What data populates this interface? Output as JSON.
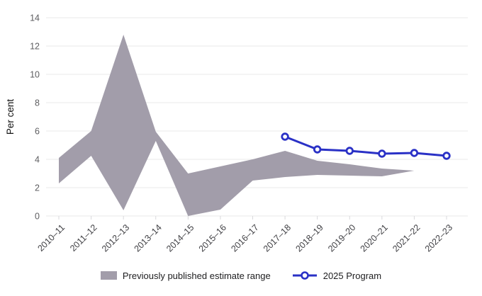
{
  "chart_data": {
    "type": "area",
    "title": "",
    "xlabel": "",
    "ylabel": "Per cent",
    "ylim": [
      0,
      14
    ],
    "ytick_step": 2,
    "grid": true,
    "legend_position": "bottom",
    "categories": [
      "2010–11",
      "2011–12",
      "2012–13",
      "2013–14",
      "2014–15",
      "2015–16",
      "2016–17",
      "2017–18",
      "2018–19",
      "2019–20",
      "2020–21",
      "2021–22",
      "2022–23"
    ],
    "series": [
      {
        "name": "Previously published estimate range",
        "type": "band",
        "color": "#a29daa",
        "lower": [
          2.3,
          4.25,
          0.4,
          5.3,
          0.0,
          0.45,
          2.5,
          2.75,
          2.9,
          2.85,
          2.8,
          3.2,
          null
        ],
        "upper": [
          4.1,
          6.0,
          12.8,
          5.95,
          3.0,
          3.5,
          4.0,
          4.6,
          3.9,
          3.65,
          3.35,
          3.2,
          null
        ]
      },
      {
        "name": "2025 Program",
        "type": "line",
        "color": "#2a31c6",
        "marker": "circle",
        "values": [
          null,
          null,
          null,
          null,
          null,
          null,
          null,
          5.6,
          4.7,
          4.6,
          4.4,
          4.45,
          4.25
        ]
      }
    ]
  },
  "colors": {
    "band": "#a29daa",
    "line": "#2a31c6",
    "grid": "#e8e8ea",
    "tick": "#d9d9dc",
    "marker_fill": "#ffffff"
  },
  "legend": {
    "band_label": "Previously published estimate range",
    "line_label": "2025 Program"
  }
}
